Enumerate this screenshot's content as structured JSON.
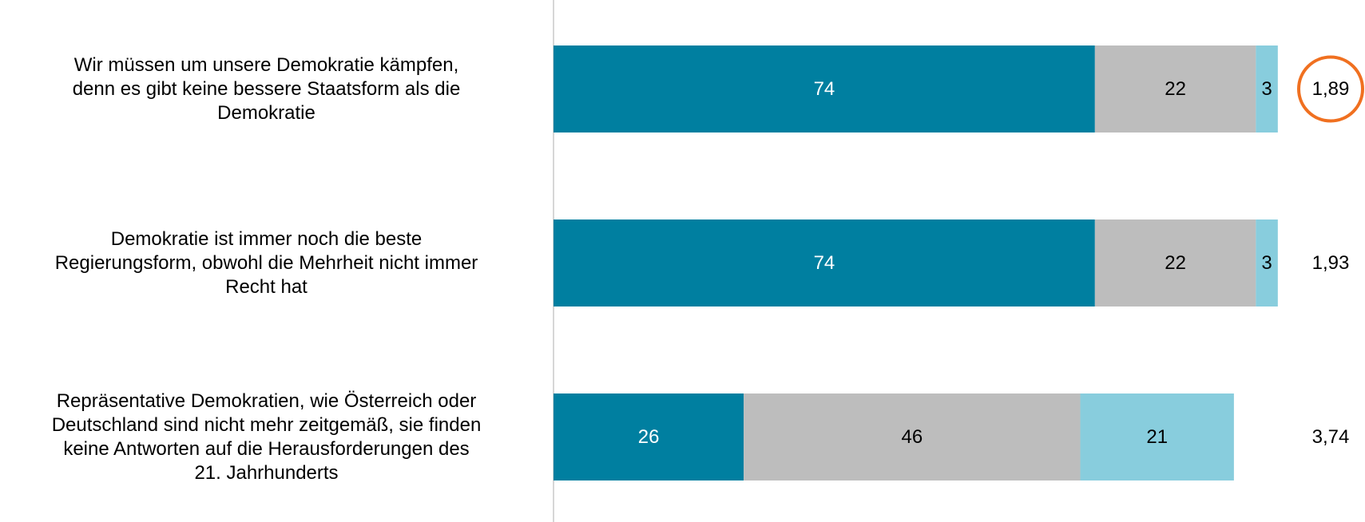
{
  "chart_data": {
    "type": "stacked_bar_horizontal",
    "categories": [
      "Wir müssen um unsere Demokratie kämpfen,\ndenn es gibt keine bessere Staatsform als die\nDemokratie",
      "Demokratie ist immer noch die beste\nRegierungsform, obwohl die Mehrheit nicht immer\nRecht hat",
      "Repräsentative Demokratien, wie Österreich oder\nDeutschland sind nicht mehr zeitgemäß, sie finden\nkeine Antworten auf die Herausforderungen des\n21. Jahrhunderts"
    ],
    "series": [
      {
        "color": "#007fa0",
        "label_color": "#ffffff",
        "values": [
          74,
          74,
          26
        ]
      },
      {
        "color": "#bdbdbd",
        "label_color": "#000000",
        "values": [
          22,
          22,
          46
        ]
      },
      {
        "color": "#88cddd",
        "label_color": "#000000",
        "values": [
          3,
          3,
          21
        ]
      }
    ],
    "means": [
      1.89,
      1.93,
      3.74
    ],
    "mean_labels": [
      "1,89",
      "1,93",
      "3,74"
    ],
    "highlight_color": "#f07020",
    "xlim": [
      0,
      100
    ]
  }
}
